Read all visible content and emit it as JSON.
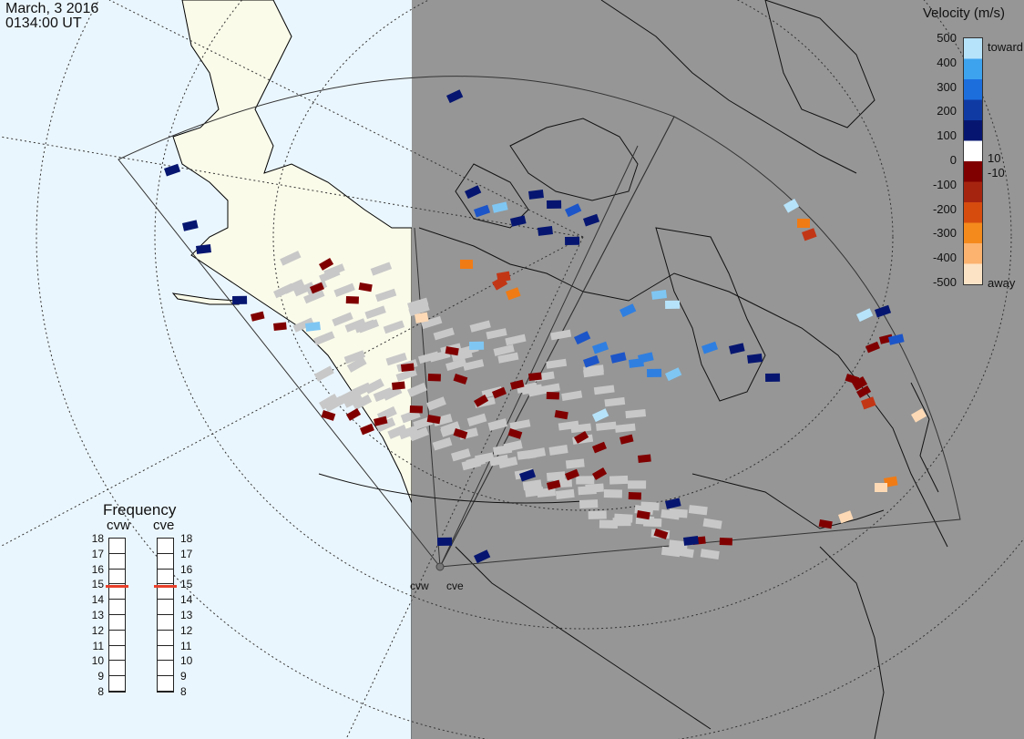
{
  "header": {
    "date": "March, 3 2016",
    "time": "0134:00 UT"
  },
  "colorbar": {
    "title": "Velocity (m/s)",
    "ticks": [
      "500",
      "400",
      "300",
      "200",
      "100",
      "0",
      "-100",
      "-200",
      "-300",
      "-400",
      "-500"
    ],
    "inner_labels": [
      "10",
      "-10"
    ],
    "toward_label": "toward",
    "away_label": "away",
    "colors": [
      "#fde3c6",
      "#fbb36f",
      "#f48a1c",
      "#d64c0f",
      "#a52410",
      "#800000",
      "#ffffff",
      "#061670",
      "#0f3aa4",
      "#1c6edd",
      "#3da3ee",
      "#b7e3fa"
    ]
  },
  "frequency": {
    "title": "Frequency",
    "radars": [
      "cvw",
      "cve"
    ],
    "scale": [
      "18",
      "17",
      "16",
      "15",
      "14",
      "13",
      "12",
      "11",
      "10",
      "9",
      "8"
    ],
    "selected_mhz": {
      "cvw": 15,
      "cve": 15
    },
    "marker_color": "#e8402a"
  },
  "sites": {
    "west": "cvw",
    "east": "cve"
  },
  "map_colors": {
    "ocean_day": "#eaf6fd",
    "land_day": "#fbfbea",
    "night": "#969696",
    "scatter_gray": "#c8c8c8"
  }
}
